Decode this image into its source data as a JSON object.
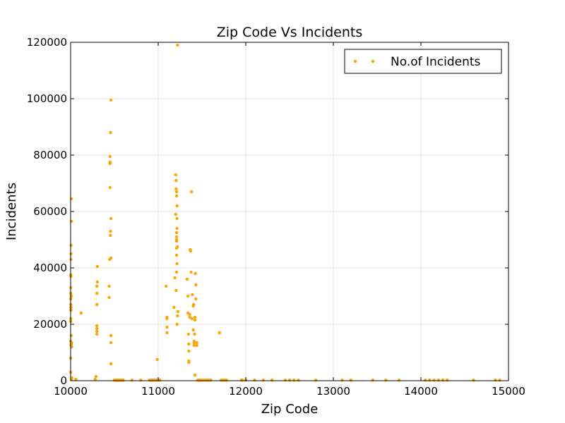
{
  "chart_data": {
    "type": "scatter",
    "title": "Zip Code  Vs   Incidents",
    "xlabel": "Zip Code",
    "ylabel": "Incidents",
    "xlim": [
      10000,
      15000
    ],
    "ylim": [
      0,
      120000
    ],
    "xticks": [
      "10000",
      "11000",
      "12000",
      "13000",
      "14000",
      "15000"
    ],
    "yticks": [
      "0",
      "20000",
      "40000",
      "60000",
      "80000",
      "100000",
      "120000"
    ],
    "grid": true,
    "legend_position": "top-right",
    "marker_color": "#ffa500",
    "series": [
      {
        "name": "No.of Incidents",
        "points": [
          [
            10001,
            3000
          ],
          [
            10001,
            8000
          ],
          [
            10001,
            14000
          ],
          [
            10002,
            21000
          ],
          [
            10002,
            22000
          ],
          [
            10002,
            25000
          ],
          [
            10002,
            26000
          ],
          [
            10002,
            27000
          ],
          [
            10002,
            29000
          ],
          [
            10002,
            31000
          ],
          [
            10002,
            33000
          ],
          [
            10003,
            37000
          ],
          [
            10003,
            37500
          ],
          [
            10003,
            43000
          ],
          [
            10004,
            45000
          ],
          [
            10005,
            48000
          ],
          [
            10005,
            25000
          ],
          [
            10006,
            26000
          ],
          [
            10006,
            12500
          ],
          [
            10007,
            13000
          ],
          [
            10007,
            16000
          ],
          [
            10008,
            30000
          ],
          [
            10009,
            64500
          ],
          [
            10010,
            56500
          ],
          [
            10011,
            13500
          ],
          [
            10012,
            12000
          ],
          [
            10011,
            500
          ],
          [
            10013,
            1000
          ],
          [
            10060,
            500
          ],
          [
            10120,
            24000
          ],
          [
            10280,
            500
          ],
          [
            10290,
            1500
          ],
          [
            10300,
            16500
          ],
          [
            10300,
            17500
          ],
          [
            10300,
            18500
          ],
          [
            10300,
            19500
          ],
          [
            10300,
            27000
          ],
          [
            10300,
            31000
          ],
          [
            10300,
            33500
          ],
          [
            10305,
            35000
          ],
          [
            10305,
            40500
          ],
          [
            10440,
            29500
          ],
          [
            10440,
            33500
          ],
          [
            10445,
            43000
          ],
          [
            10450,
            68500
          ],
          [
            10450,
            77000
          ],
          [
            10450,
            77500
          ],
          [
            10450,
            79500
          ],
          [
            10455,
            88000
          ],
          [
            10460,
            99500
          ],
          [
            10455,
            51500
          ],
          [
            10455,
            53000
          ],
          [
            10460,
            57500
          ],
          [
            10460,
            43500
          ],
          [
            10460,
            16000
          ],
          [
            10460,
            13500
          ],
          [
            10460,
            6000
          ],
          [
            10500,
            200
          ],
          [
            10510,
            200
          ],
          [
            10520,
            200
          ],
          [
            10530,
            200
          ],
          [
            10540,
            200
          ],
          [
            10550,
            200
          ],
          [
            10560,
            200
          ],
          [
            10570,
            200
          ],
          [
            10580,
            200
          ],
          [
            10590,
            200
          ],
          [
            10600,
            200
          ],
          [
            10700,
            200
          ],
          [
            10800,
            200
          ],
          [
            10900,
            200
          ],
          [
            10920,
            200
          ],
          [
            10940,
            200
          ],
          [
            10960,
            200
          ],
          [
            10980,
            200
          ],
          [
            11000,
            200
          ],
          [
            11010,
            200
          ],
          [
            11020,
            200
          ],
          [
            10990,
            7500
          ],
          [
            11090,
            33500
          ],
          [
            11100,
            17000
          ],
          [
            11100,
            19000
          ],
          [
            11100,
            22000
          ],
          [
            11100,
            22500
          ],
          [
            11180,
            26000
          ],
          [
            11190,
            36500
          ],
          [
            11200,
            73000
          ],
          [
            11205,
            71000
          ],
          [
            11205,
            68000
          ],
          [
            11210,
            67000
          ],
          [
            11210,
            65500
          ],
          [
            11215,
            62000
          ],
          [
            11200,
            59000
          ],
          [
            11215,
            57500
          ],
          [
            11215,
            54000
          ],
          [
            11210,
            52500
          ],
          [
            11210,
            51000
          ],
          [
            11210,
            50000
          ],
          [
            11210,
            49500
          ],
          [
            11220,
            47500
          ],
          [
            11210,
            47000
          ],
          [
            11210,
            44500
          ],
          [
            11215,
            41500
          ],
          [
            11210,
            38500
          ],
          [
            11205,
            32000
          ],
          [
            11225,
            24500
          ],
          [
            11220,
            23000
          ],
          [
            11215,
            20000
          ],
          [
            11220,
            119000
          ],
          [
            11330,
            36000
          ],
          [
            11340,
            30000
          ],
          [
            11340,
            24000
          ],
          [
            11345,
            16500
          ],
          [
            11350,
            13000
          ],
          [
            11350,
            10500
          ],
          [
            11350,
            7000
          ],
          [
            11350,
            6500
          ],
          [
            11360,
            22500
          ],
          [
            11360,
            23500
          ],
          [
            11365,
            46500
          ],
          [
            11370,
            46000
          ],
          [
            11375,
            38500
          ],
          [
            11380,
            67000
          ],
          [
            11385,
            22000
          ],
          [
            11390,
            30500
          ],
          [
            11400,
            26500
          ],
          [
            11405,
            27000
          ],
          [
            11400,
            18000
          ],
          [
            11410,
            14000
          ],
          [
            11410,
            13500
          ],
          [
            11410,
            12500
          ],
          [
            11415,
            16500
          ],
          [
            11420,
            21500
          ],
          [
            11420,
            22500
          ],
          [
            11420,
            2000
          ],
          [
            11425,
            38000
          ],
          [
            11430,
            34000
          ],
          [
            11430,
            29000
          ],
          [
            11440,
            13500
          ],
          [
            11440,
            12500
          ],
          [
            11450,
            200
          ],
          [
            11460,
            200
          ],
          [
            11470,
            200
          ],
          [
            11480,
            200
          ],
          [
            11500,
            200
          ],
          [
            11520,
            200
          ],
          [
            11540,
            200
          ],
          [
            11560,
            200
          ],
          [
            11580,
            200
          ],
          [
            11600,
            200
          ],
          [
            11700,
            17000
          ],
          [
            11720,
            200
          ],
          [
            11740,
            200
          ],
          [
            11760,
            200
          ],
          [
            11780,
            200
          ],
          [
            11950,
            200
          ],
          [
            11960,
            200
          ],
          [
            12000,
            200
          ],
          [
            12100,
            200
          ],
          [
            12200,
            200
          ],
          [
            12300,
            200
          ],
          [
            12450,
            200
          ],
          [
            12500,
            200
          ],
          [
            12550,
            200
          ],
          [
            12600,
            200
          ],
          [
            12800,
            200
          ],
          [
            13100,
            200
          ],
          [
            13200,
            200
          ],
          [
            13450,
            200
          ],
          [
            13600,
            200
          ],
          [
            13750,
            200
          ],
          [
            14050,
            200
          ],
          [
            14100,
            200
          ],
          [
            14150,
            200
          ],
          [
            14200,
            200
          ],
          [
            14250,
            200
          ],
          [
            14300,
            200
          ],
          [
            14600,
            200
          ],
          [
            14850,
            200
          ],
          [
            14900,
            200
          ]
        ]
      }
    ]
  }
}
